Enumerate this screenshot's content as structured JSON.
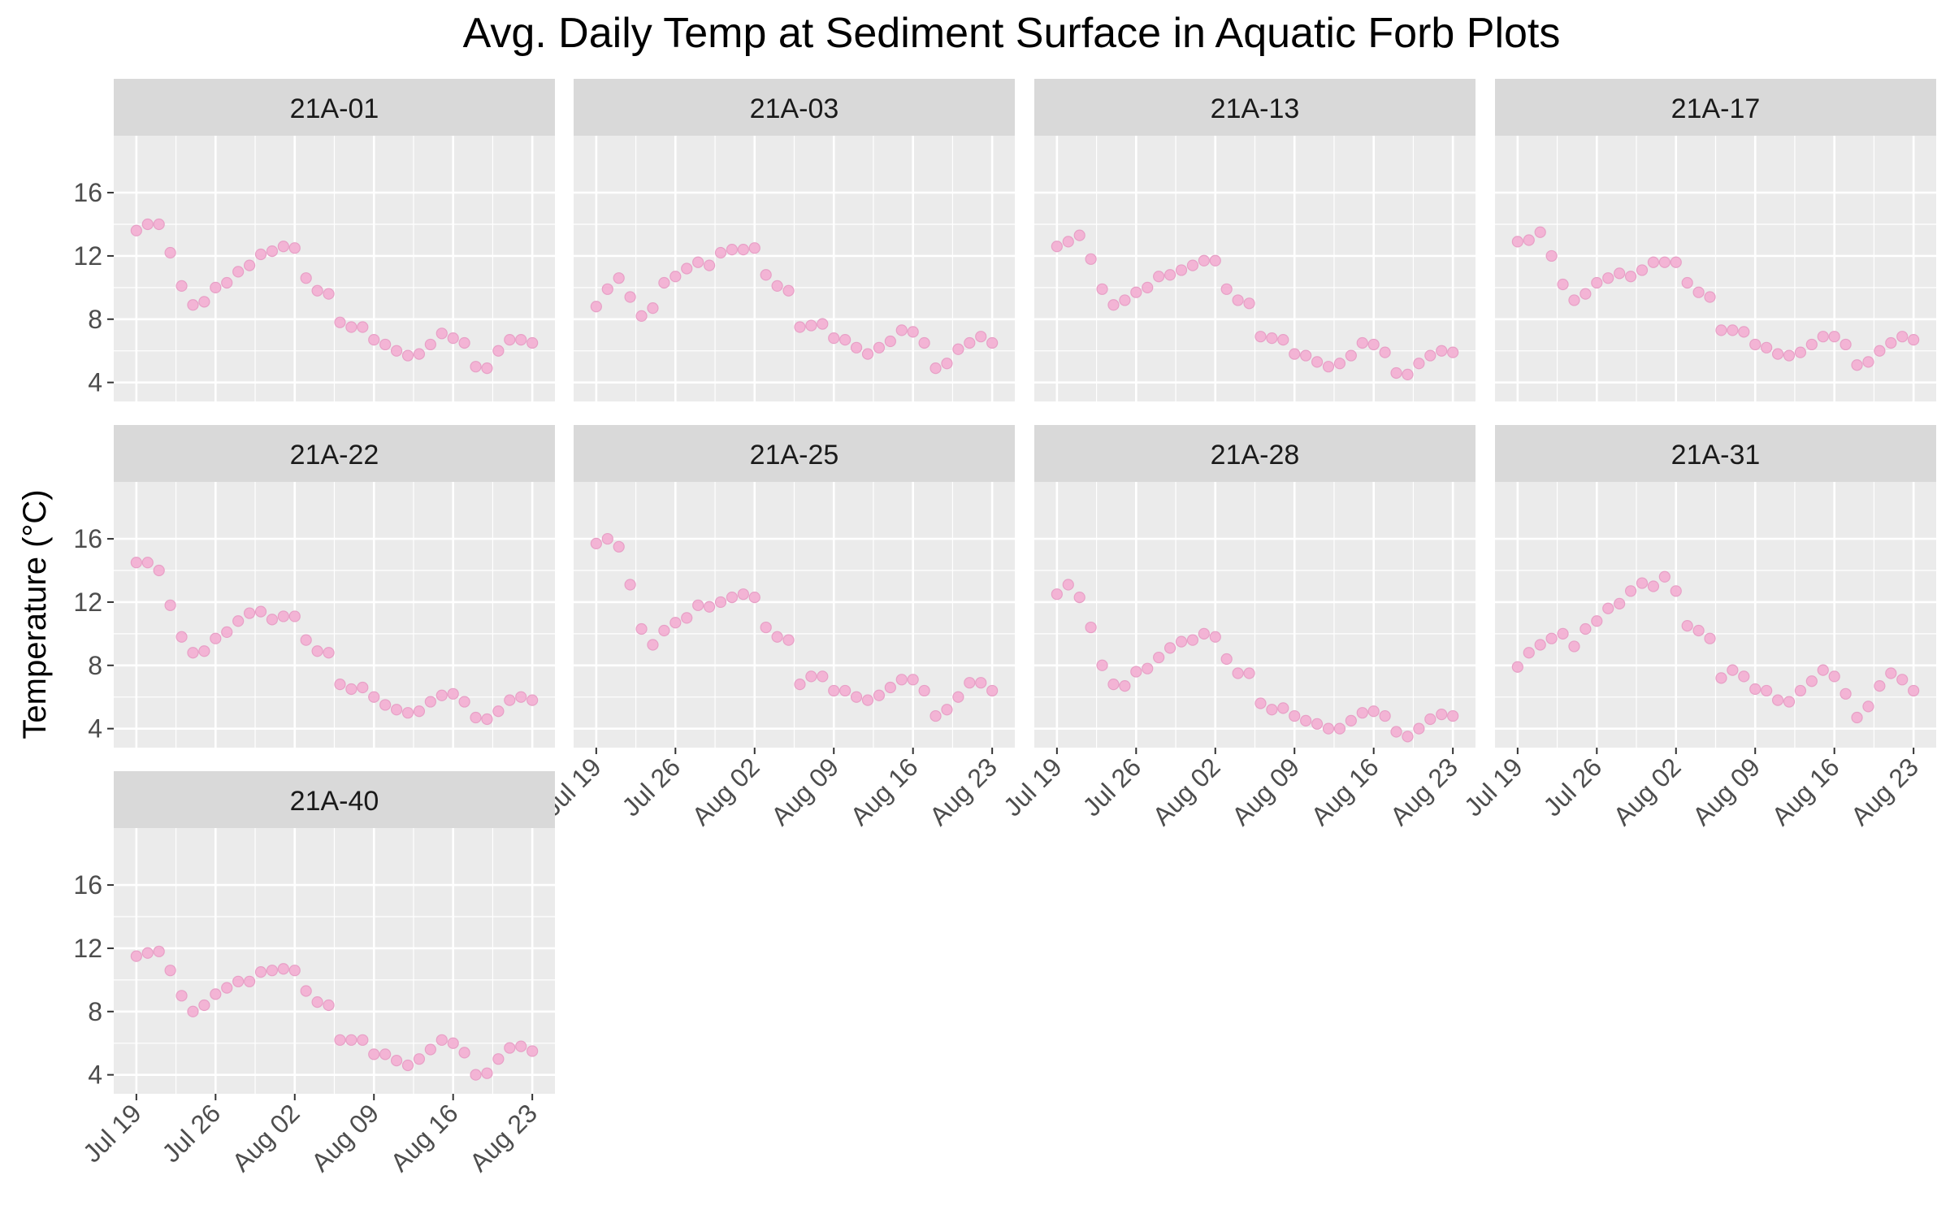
{
  "chart_data": {
    "type": "scatter",
    "title": "Avg. Daily Temp at Sediment Surface in Aquatic Forb Plots",
    "ylabel": "Temperature (°C)",
    "xlabel": "",
    "x_dates": [
      "2021-07-19",
      "2021-07-20",
      "2021-07-21",
      "2021-07-22",
      "2021-07-23",
      "2021-07-24",
      "2021-07-25",
      "2021-07-26",
      "2021-07-27",
      "2021-07-28",
      "2021-07-29",
      "2021-07-30",
      "2021-07-31",
      "2021-08-01",
      "2021-08-02",
      "2021-08-03",
      "2021-08-04",
      "2021-08-05",
      "2021-08-06",
      "2021-08-07",
      "2021-08-08",
      "2021-08-09",
      "2021-08-10",
      "2021-08-11",
      "2021-08-12",
      "2021-08-13",
      "2021-08-14",
      "2021-08-15",
      "2021-08-16",
      "2021-08-17",
      "2021-08-18",
      "2021-08-19",
      "2021-08-20",
      "2021-08-21",
      "2021-08-22",
      "2021-08-23"
    ],
    "xlim": [
      "2021-07-17",
      "2021-08-25"
    ],
    "x_ticks": [
      "Jul 19",
      "Jul 26",
      "Aug 02",
      "Aug 09",
      "Aug 16",
      "Aug 23"
    ],
    "x_tick_dates": [
      "2021-07-19",
      "2021-07-26",
      "2021-08-02",
      "2021-08-09",
      "2021-08-16",
      "2021-08-23"
    ],
    "y_ticks": [
      4,
      8,
      12,
      16
    ],
    "ylim": [
      2.8,
      19.6
    ],
    "point_color": "#F3B4D5",
    "point_edge_color": "#E7A0C6",
    "panel_background": "#EBEBEB",
    "strip_background": "#D9D9D9",
    "grid_color": "#FFFFFF",
    "grid": true,
    "facets": [
      {
        "name": "21A-01",
        "values": [
          13.6,
          14.0,
          14.0,
          12.2,
          10.1,
          8.9,
          9.1,
          10.0,
          10.3,
          11.0,
          11.4,
          12.1,
          12.3,
          12.6,
          12.5,
          10.6,
          9.8,
          9.6,
          7.8,
          7.5,
          7.5,
          6.7,
          6.4,
          6.0,
          5.7,
          5.8,
          6.4,
          7.1,
          6.8,
          6.5,
          5.0,
          4.9,
          6.0,
          6.7,
          6.7,
          6.5
        ]
      },
      {
        "name": "21A-03",
        "values": [
          8.8,
          9.9,
          10.6,
          9.4,
          8.2,
          8.7,
          10.3,
          10.7,
          11.2,
          11.6,
          11.4,
          12.2,
          12.4,
          12.4,
          12.5,
          10.8,
          10.1,
          9.8,
          7.5,
          7.6,
          7.7,
          6.8,
          6.7,
          6.2,
          5.8,
          6.2,
          6.6,
          7.3,
          7.2,
          6.5,
          4.9,
          5.2,
          6.1,
          6.5,
          6.9,
          6.5
        ]
      },
      {
        "name": "21A-13",
        "values": [
          12.6,
          12.9,
          13.3,
          11.8,
          9.9,
          8.9,
          9.2,
          9.7,
          10.0,
          10.7,
          10.8,
          11.1,
          11.4,
          11.7,
          11.7,
          9.9,
          9.2,
          9.0,
          6.9,
          6.8,
          6.7,
          5.8,
          5.7,
          5.3,
          5.0,
          5.2,
          5.7,
          6.5,
          6.4,
          5.9,
          4.6,
          4.5,
          5.2,
          5.7,
          6.0,
          5.9
        ]
      },
      {
        "name": "21A-17",
        "values": [
          12.9,
          13.0,
          13.5,
          12.0,
          10.2,
          9.2,
          9.6,
          10.3,
          10.6,
          10.9,
          10.7,
          11.1,
          11.6,
          11.6,
          11.6,
          10.3,
          9.7,
          9.4,
          7.3,
          7.3,
          7.2,
          6.4,
          6.2,
          5.8,
          5.7,
          5.9,
          6.4,
          6.9,
          6.9,
          6.4,
          5.1,
          5.3,
          6.0,
          6.5,
          6.9,
          6.7
        ]
      },
      {
        "name": "21A-22",
        "values": [
          14.5,
          14.5,
          14.0,
          11.8,
          9.8,
          8.8,
          8.9,
          9.7,
          10.1,
          10.8,
          11.3,
          11.4,
          10.9,
          11.1,
          11.1,
          9.6,
          8.9,
          8.8,
          6.8,
          6.5,
          6.6,
          6.0,
          5.5,
          5.2,
          5.0,
          5.1,
          5.7,
          6.1,
          6.2,
          5.7,
          4.7,
          4.6,
          5.1,
          5.8,
          6.0,
          5.8
        ]
      },
      {
        "name": "21A-25",
        "values": [
          15.7,
          16.0,
          15.5,
          13.1,
          10.3,
          9.3,
          10.2,
          10.7,
          11.0,
          11.8,
          11.7,
          12.0,
          12.3,
          12.5,
          12.3,
          10.4,
          9.8,
          9.6,
          6.8,
          7.3,
          7.3,
          6.4,
          6.4,
          6.0,
          5.8,
          6.1,
          6.6,
          7.1,
          7.1,
          6.4,
          4.8,
          5.2,
          6.0,
          6.9,
          6.9,
          6.4
        ]
      },
      {
        "name": "21A-28",
        "values": [
          12.5,
          13.1,
          12.3,
          10.4,
          8.0,
          6.8,
          6.7,
          7.6,
          7.8,
          8.5,
          9.1,
          9.5,
          9.6,
          10.0,
          9.8,
          8.4,
          7.5,
          7.5,
          5.6,
          5.2,
          5.3,
          4.8,
          4.5,
          4.3,
          4.0,
          4.0,
          4.5,
          5.0,
          5.1,
          4.8,
          3.8,
          3.5,
          4.0,
          4.6,
          4.9,
          4.8
        ]
      },
      {
        "name": "21A-31",
        "values": [
          7.9,
          8.8,
          9.3,
          9.7,
          10.0,
          9.2,
          10.3,
          10.8,
          11.6,
          11.9,
          12.7,
          13.2,
          13.0,
          13.6,
          12.7,
          10.5,
          10.2,
          9.7,
          7.2,
          7.7,
          7.3,
          6.5,
          6.4,
          5.8,
          5.7,
          6.4,
          7.0,
          7.7,
          7.3,
          6.2,
          4.7,
          5.4,
          6.7,
          7.5,
          7.1,
          6.4
        ]
      },
      {
        "name": "21A-40",
        "values": [
          11.5,
          11.7,
          11.8,
          10.6,
          9.0,
          8.0,
          8.4,
          9.1,
          9.5,
          9.9,
          9.9,
          10.5,
          10.6,
          10.7,
          10.6,
          9.3,
          8.6,
          8.4,
          6.2,
          6.2,
          6.2,
          5.3,
          5.3,
          4.9,
          4.6,
          5.0,
          5.6,
          6.2,
          6.0,
          5.4,
          4.0,
          4.1,
          5.0,
          5.7,
          5.8,
          5.5
        ]
      }
    ]
  }
}
